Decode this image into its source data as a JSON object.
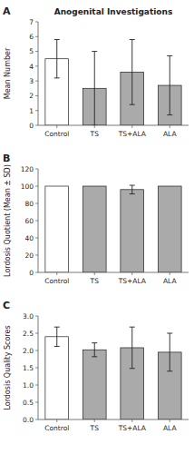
{
  "chart_data": [
    {
      "type": "bar",
      "title": "Anogenital Investigations",
      "y_label": "Mean Number",
      "annotations": [
        "A"
      ],
      "categories": [
        "Control",
        "TS",
        "TS+ALA",
        "ALA"
      ],
      "values": [
        4.5,
        2.5,
        3.6,
        2.7
      ],
      "errors": [
        1.3,
        2.5,
        2.2,
        2.0
      ],
      "colors": [
        "white",
        "#aaaaaa",
        "#aaaaaa",
        "#aaaaaa"
      ],
      "ylim": [
        0,
        7
      ],
      "yticks": [
        0,
        1,
        2,
        3,
        4,
        5,
        6,
        7
      ]
    },
    {
      "type": "bar",
      "y_label": "Lordosis Quotient (Mean ± SD)",
      "annotations": [
        "B"
      ],
      "categories": [
        "Control",
        "TS",
        "TS+ALA",
        "ALA"
      ],
      "values": [
        100,
        100,
        96,
        100
      ],
      "errors": [
        0,
        0,
        5,
        0
      ],
      "colors": [
        "white",
        "#aaaaaa",
        "#aaaaaa",
        "#aaaaaa"
      ],
      "ylim": [
        0,
        120
      ],
      "yticks": [
        0,
        20,
        40,
        60,
        80,
        100,
        120
      ]
    },
    {
      "type": "bar",
      "y_label": "Lordosis Quality Scores",
      "annotations": [
        "C"
      ],
      "categories": [
        "Control",
        "TS",
        "TS+ALA",
        "ALA"
      ],
      "values": [
        2.4,
        2.02,
        2.08,
        1.95
      ],
      "errors": [
        0.28,
        0.2,
        0.6,
        0.55
      ],
      "colors": [
        "white",
        "#aaaaaa",
        "#aaaaaa",
        "#aaaaaa"
      ],
      "ylim": [
        0,
        3.0
      ],
      "yticks": [
        {
          "value": 0,
          "label": "0.0"
        },
        0.5,
        {
          "value": 1,
          "label": "1.0"
        },
        1.5,
        {
          "value": 2,
          "label": "2.0"
        },
        2.5,
        {
          "value": 3,
          "label": "3.0"
        }
      ]
    }
  ]
}
